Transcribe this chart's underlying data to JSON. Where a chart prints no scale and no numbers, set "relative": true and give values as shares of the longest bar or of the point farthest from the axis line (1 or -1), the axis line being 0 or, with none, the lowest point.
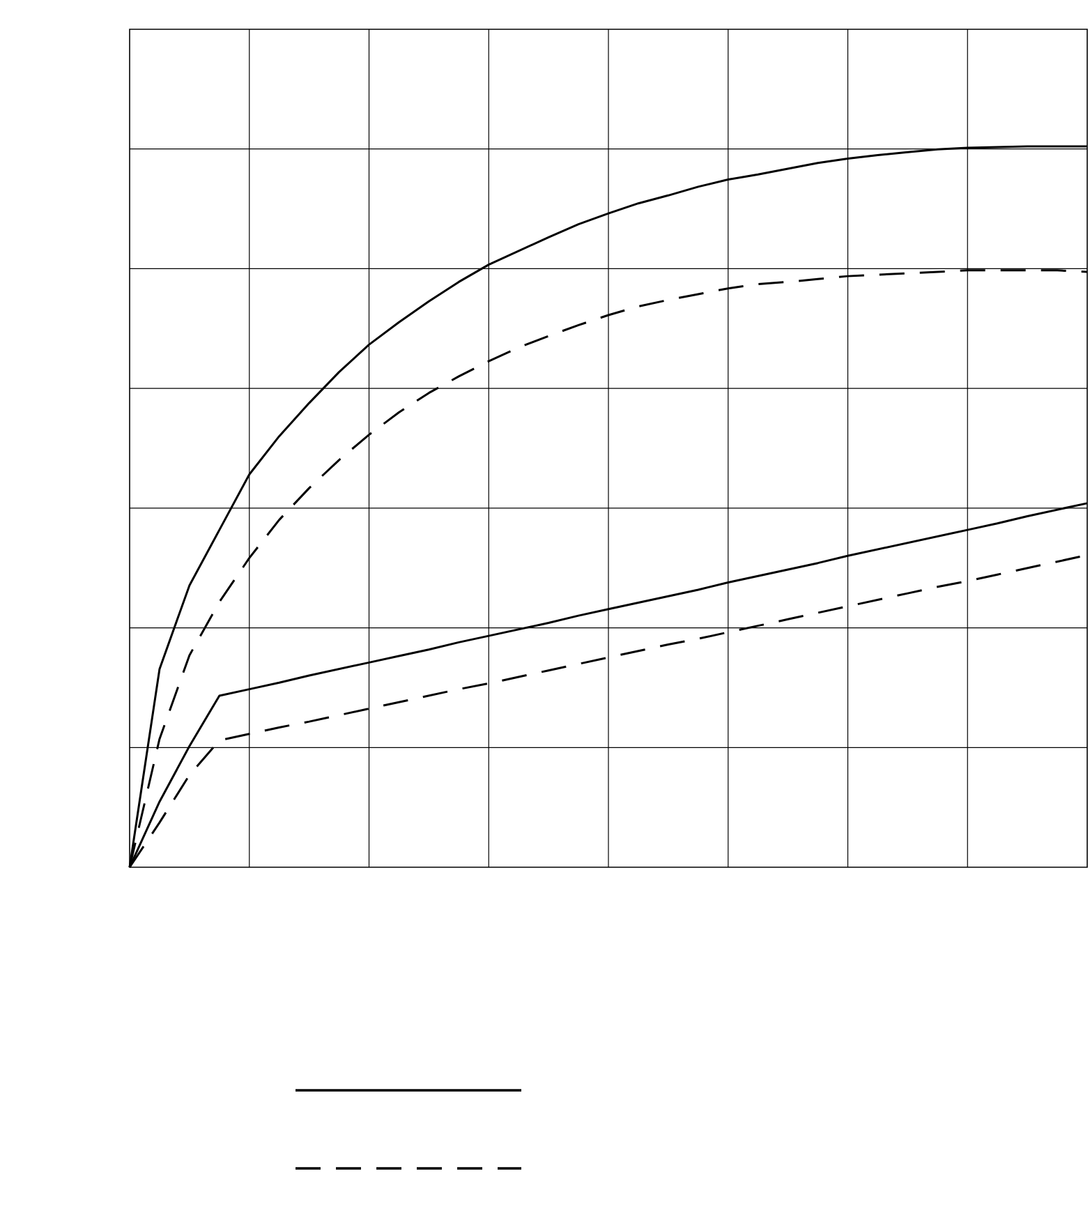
{
  "chart_data": {
    "type": "line",
    "relative": true,
    "grid": true,
    "categories": [
      null,
      null,
      null,
      null,
      null,
      null,
      null,
      null,
      null,
      null,
      null,
      null,
      null,
      null,
      null,
      null,
      null,
      null,
      null,
      null,
      null,
      null,
      null,
      null,
      null,
      null,
      null,
      null,
      null,
      null,
      null,
      null,
      null
    ],
    "series": [
      {
        "color": "#000000",
        "line_style": "solid",
        "values": [
          0,
          0.275,
          0.391,
          0.468,
          0.545,
          0.598,
          0.644,
          0.687,
          0.725,
          0.756,
          0.785,
          0.812,
          0.836,
          0.855,
          0.874,
          0.892,
          0.907,
          0.921,
          0.932,
          0.944,
          0.954,
          0.961,
          0.969,
          0.977,
          0.983,
          0.988,
          0.992,
          0.996,
          0.998,
          0.999,
          1,
          1,
          1
        ]
      },
      {
        "color": "#000000",
        "line_style": "dashed",
        "values": [
          0,
          0.178,
          0.294,
          0.368,
          0.429,
          0.482,
          0.526,
          0.565,
          0.6,
          0.631,
          0.658,
          0.681,
          0.702,
          0.721,
          0.737,
          0.752,
          0.766,
          0.778,
          0.787,
          0.795,
          0.803,
          0.809,
          0.812,
          0.816,
          0.82,
          0.822,
          0.824,
          0.826,
          0.828,
          0.828,
          0.828,
          0.828,
          0.826
        ]
      },
      {
        "color": "#000000",
        "line_style": "solid",
        "values": [
          0,
          0.091,
          0.168,
          0.238,
          0.247,
          0.256,
          0.266,
          0.275,
          0.284,
          0.293,
          0.302,
          0.312,
          0.321,
          0.33,
          0.339,
          0.349,
          0.358,
          0.367,
          0.376,
          0.385,
          0.395,
          0.404,
          0.413,
          0.422,
          0.432,
          0.441,
          0.45,
          0.459,
          0.468,
          0.477,
          0.487,
          0.496,
          0.505
        ]
      },
      {
        "color": "#000000",
        "line_style": "dashed",
        "values": [
          0,
          0.062,
          0.128,
          0.176,
          0.185,
          0.194,
          0.202,
          0.211,
          0.22,
          0.229,
          0.238,
          0.247,
          0.255,
          0.264,
          0.273,
          0.282,
          0.291,
          0.3,
          0.309,
          0.317,
          0.326,
          0.335,
          0.344,
          0.353,
          0.362,
          0.371,
          0.38,
          0.389,
          0.397,
          0.406,
          0.415,
          0.424,
          0.433
        ]
      }
    ]
  }
}
